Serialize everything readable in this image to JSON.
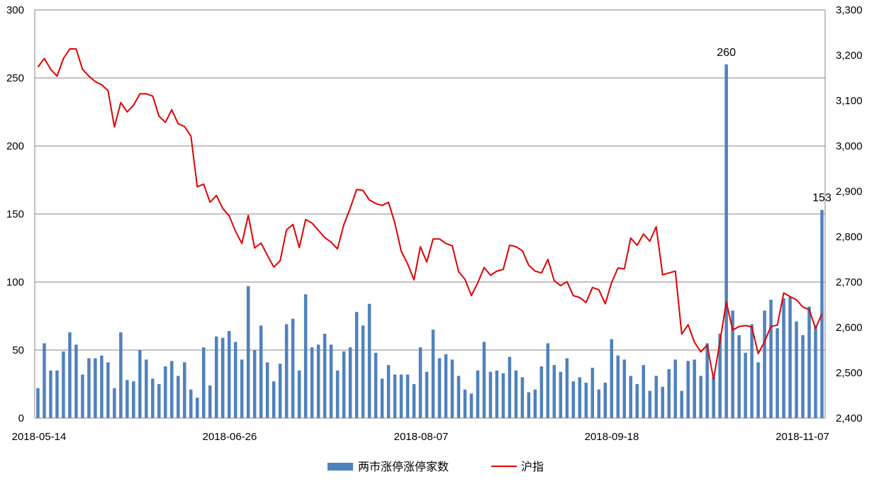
{
  "chart_data": {
    "type": "bar+line",
    "x_tick_labels": [
      "2018-05-14",
      "2018-06-26",
      "2018-08-07",
      "2018-09-18",
      "2018-11-07"
    ],
    "y_left": {
      "ylim": [
        0,
        300
      ],
      "ticks": [
        "0",
        "50",
        "100",
        "150",
        "200",
        "250",
        "300"
      ]
    },
    "y_right": {
      "ylim": [
        2400,
        3300
      ],
      "ticks": [
        "2,400",
        "2,500",
        "2,600",
        "2,700",
        "2,800",
        "2,900",
        "3,000",
        "3,100",
        "3,200",
        "3,300"
      ]
    },
    "grid": "horizontal",
    "legend_position": "bottom",
    "series": [
      {
        "name": "两市涨停涨停家数",
        "type": "bar",
        "axis": "left",
        "color": "#4F81BD",
        "values": [
          22,
          55,
          35,
          35,
          49,
          63,
          54,
          32,
          44,
          44,
          46,
          41,
          22,
          63,
          28,
          27,
          50,
          43,
          29,
          25,
          38,
          42,
          31,
          41,
          21,
          15,
          52,
          24,
          60,
          59,
          64,
          56,
          43,
          97,
          50,
          68,
          41,
          27,
          40,
          69,
          73,
          35,
          91,
          52,
          54,
          62,
          54,
          35,
          49,
          52,
          78,
          68,
          84,
          48,
          29,
          39,
          32,
          32,
          32,
          25,
          52,
          34,
          65,
          44,
          47,
          43,
          31,
          21,
          18,
          35,
          56,
          34,
          35,
          33,
          45,
          35,
          30,
          19,
          21,
          38,
          55,
          39,
          34,
          44,
          27,
          30,
          26,
          37,
          21,
          26,
          58,
          46,
          43,
          31,
          25,
          39,
          20,
          31,
          23,
          36,
          43,
          20,
          42,
          43,
          31,
          55,
          30,
          62,
          260,
          79,
          61,
          48,
          69,
          41,
          79,
          87,
          66,
          88,
          89,
          71,
          61,
          82,
          68,
          153
        ]
      },
      {
        "name": "沪指",
        "type": "line",
        "axis": "right",
        "color": "#E00000",
        "values": [
          3174,
          3193,
          3169,
          3154,
          3193,
          3214,
          3214,
          3169,
          3154,
          3142,
          3135,
          3122,
          3042,
          3096,
          3075,
          3090,
          3115,
          3115,
          3110,
          3066,
          3052,
          3080,
          3049,
          3043,
          3022,
          2910,
          2916,
          2876,
          2891,
          2862,
          2846,
          2812,
          2785,
          2847,
          2775,
          2786,
          2759,
          2733,
          2747,
          2815,
          2827,
          2776,
          2838,
          2830,
          2814,
          2798,
          2788,
          2773,
          2827,
          2863,
          2904,
          2902,
          2881,
          2873,
          2869,
          2876,
          2830,
          2768,
          2740,
          2705,
          2778,
          2744,
          2795,
          2795,
          2785,
          2780,
          2723,
          2706,
          2670,
          2698,
          2732,
          2715,
          2724,
          2728,
          2781,
          2778,
          2769,
          2737,
          2724,
          2720,
          2750,
          2703,
          2692,
          2701,
          2670,
          2666,
          2655,
          2688,
          2683,
          2652,
          2699,
          2731,
          2729,
          2797,
          2781,
          2806,
          2790,
          2822,
          2716,
          2720,
          2724,
          2585,
          2606,
          2567,
          2546,
          2561,
          2486,
          2568,
          2656,
          2594,
          2602,
          2604,
          2601,
          2542,
          2569,
          2602,
          2605,
          2676,
          2668,
          2661,
          2645,
          2639,
          2598,
          2630
        ]
      }
    ],
    "annotations": [
      {
        "text": "260",
        "series": 0,
        "index": 108
      },
      {
        "text": "153",
        "series": 0,
        "index": 123
      }
    ]
  }
}
